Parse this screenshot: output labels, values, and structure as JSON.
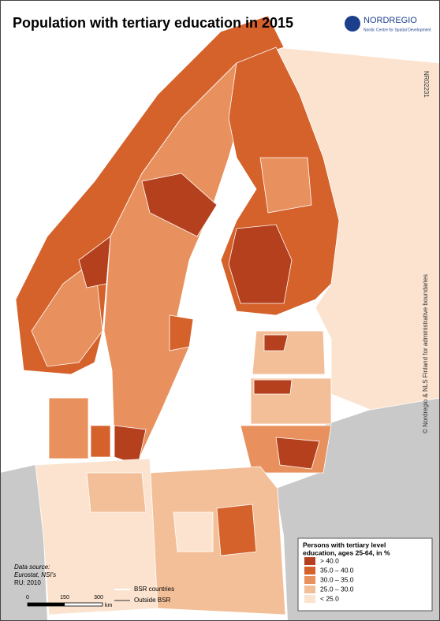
{
  "header": {
    "title": "Population with tertiary education in 2015"
  },
  "logo": {
    "name": "NORDREGIO",
    "subtitle": "Nordic Centre for Spatial Development"
  },
  "map_id": "NR02231",
  "copyright": "© Nordregio & NLS Finland for administrative boundaries",
  "legend": {
    "title": [
      "Persons with tertiary level",
      "education, ages 25-64, in %"
    ],
    "items": [
      {
        "label": "> 40.0",
        "color": "#b5401e"
      },
      {
        "label": "35.0 – 40.0",
        "color": "#d5612b"
      },
      {
        "label": "30.0 – 35.0",
        "color": "#e8915e"
      },
      {
        "label": "25.0 – 30.0",
        "color": "#f3bf98"
      },
      {
        "label": "< 25.0",
        "color": "#fbe3cf"
      }
    ]
  },
  "source": {
    "lines": [
      "Data source:",
      "Eurostat, NSI's",
      "RU: 2010"
    ]
  },
  "scale": {
    "labels": [
      "0",
      "150",
      "300",
      "km"
    ]
  },
  "boundaries": {
    "items": [
      "BSR countries",
      "Outside BSR"
    ]
  }
}
